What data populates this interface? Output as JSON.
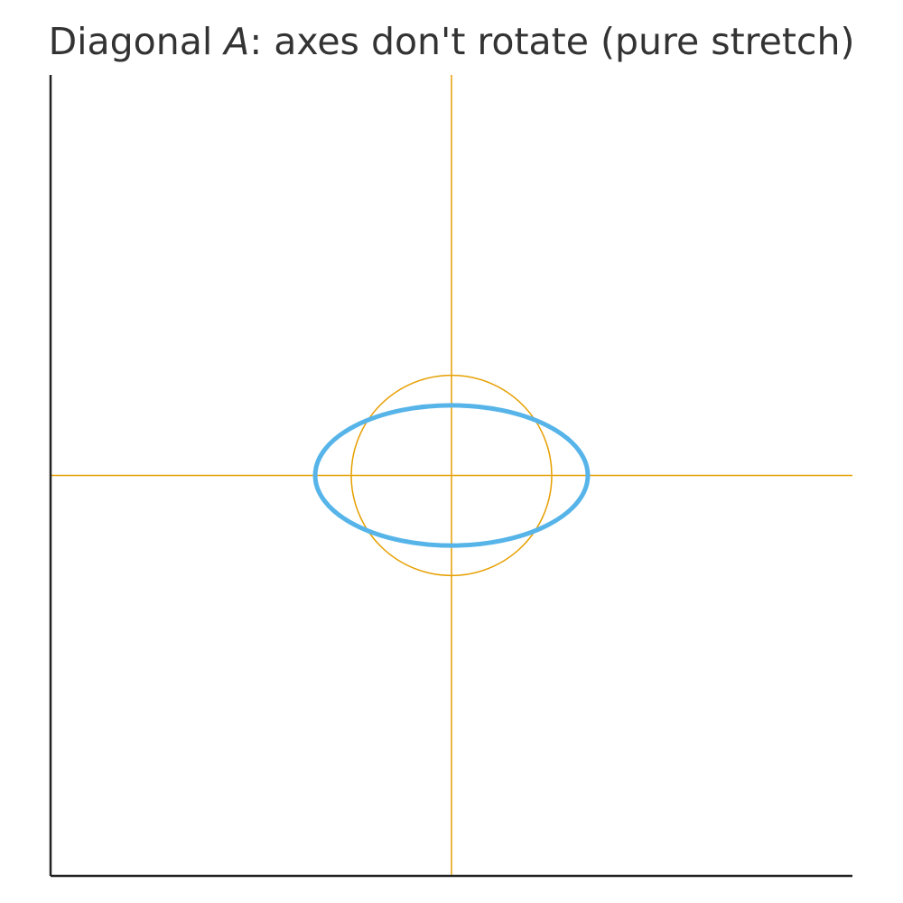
{
  "chart_data": {
    "type": "line",
    "title": {
      "prefix": "Diagonal ",
      "math": "A",
      "suffix": ": axes don't rotate (pure stretch)"
    },
    "xlim": [
      -2,
      2
    ],
    "ylim": [
      -2,
      2
    ],
    "grid": false,
    "colors": {
      "reference": "#E69F00",
      "transformed": "#56B4E9",
      "spine": "#222222"
    },
    "series": [
      {
        "kind": "unit_circle",
        "center": [
          0,
          0
        ],
        "rx": 0.5,
        "ry": 0.5
      },
      {
        "kind": "transformed_ellipse",
        "center": [
          0,
          0
        ],
        "rx": 0.68,
        "ry": 0.35
      },
      {
        "kind": "horizontal_axis_line",
        "y": 0
      },
      {
        "kind": "vertical_axis_line",
        "x": 0
      }
    ]
  }
}
